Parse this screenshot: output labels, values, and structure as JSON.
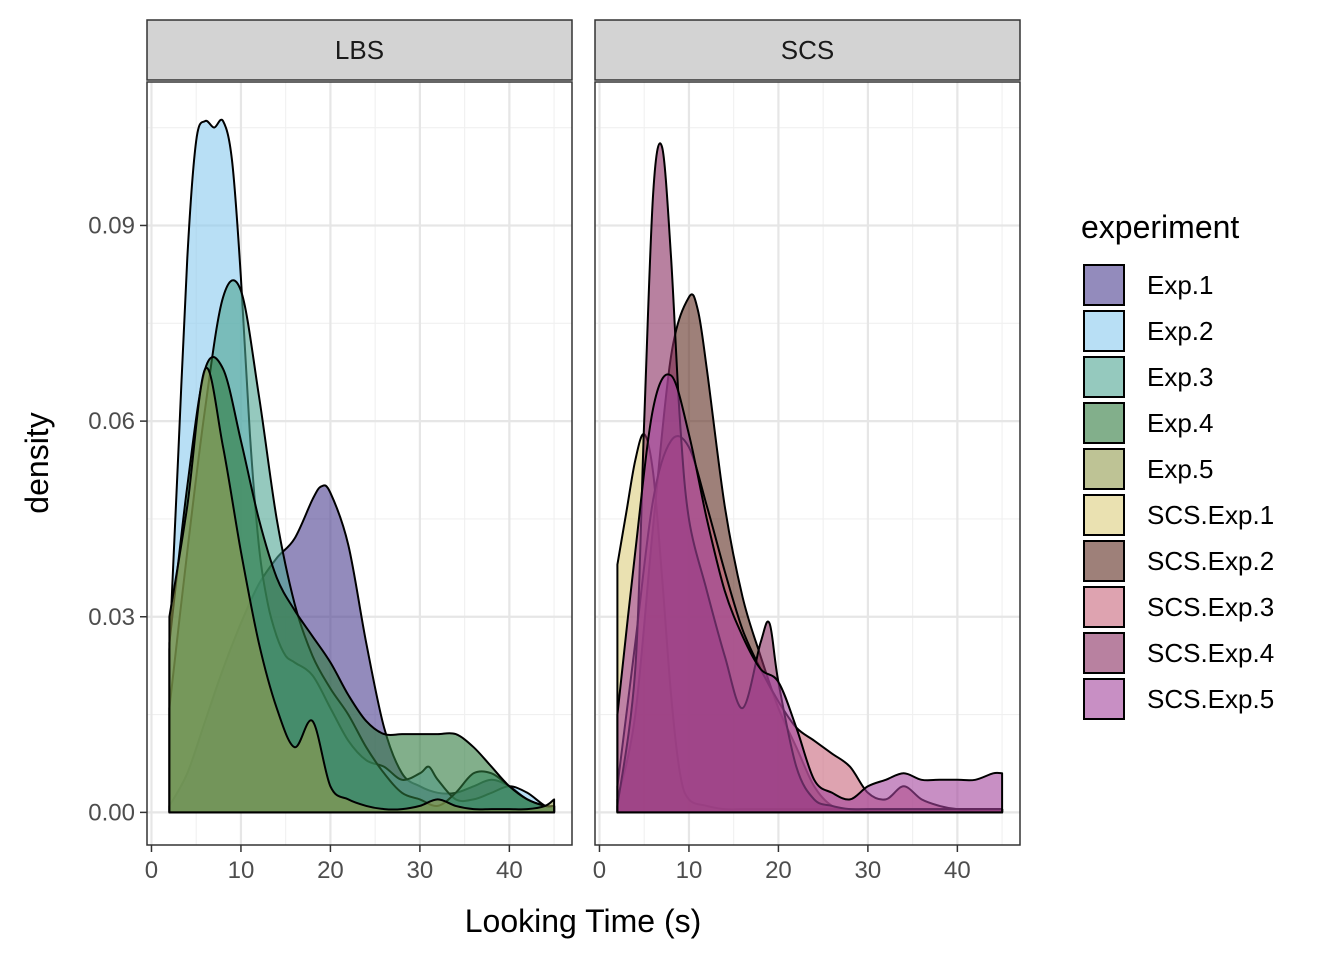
{
  "chart_data": {
    "type": "area",
    "xlabel": "Looking Time (s)",
    "ylabel": "density",
    "xlim": [
      -0.5,
      47
    ],
    "ylim": [
      -0.005,
      0.112
    ],
    "x_ticks": [
      0,
      10,
      20,
      30,
      40
    ],
    "y_ticks": [
      0.0,
      0.03,
      0.06,
      0.09
    ],
    "y_tick_labels": [
      "0.00",
      "0.03",
      "0.06",
      "0.09"
    ],
    "grid": true,
    "legend": {
      "title": "experiment",
      "position": "right",
      "entries": [
        {
          "name": "Exp.1",
          "color": "#4b3d8f"
        },
        {
          "name": "Exp.2",
          "color": "#88c9ee"
        },
        {
          "name": "Exp.3",
          "color": "#4fa592"
        },
        {
          "name": "Exp.4",
          "color": "#2f7a3e"
        },
        {
          "name": "Exp.5",
          "color": "#939b4f"
        },
        {
          "name": "SCS.Exp.1",
          "color": "#dccd7d"
        },
        {
          "name": "SCS.Exp.2",
          "color": "#5e2c1f"
        },
        {
          "name": "SCS.Exp.3",
          "color": "#c8667c"
        },
        {
          "name": "SCS.Exp.4",
          "color": "#892d60"
        },
        {
          "name": "SCS.Exp.5",
          "color": "#a4449c"
        }
      ]
    },
    "facets": [
      {
        "label": "LBS",
        "series": [
          {
            "name": "Exp.1",
            "x": [
              2,
              4,
              6,
              8,
              10,
              12,
              14,
              16,
              18,
              19,
              20,
              22,
              24,
              26,
              28,
              30,
              32,
              34,
              36,
              38,
              40,
              42,
              44,
              45
            ],
            "y": [
              0.001,
              0.006,
              0.014,
              0.022,
              0.029,
              0.035,
              0.039,
              0.042,
              0.048,
              0.05,
              0.049,
              0.041,
              0.026,
              0.013,
              0.006,
              0.004,
              0.003,
              0.003,
              0.004,
              0.005,
              0.004,
              0.002,
              0.001,
              0.001
            ]
          },
          {
            "name": "Exp.2",
            "x": [
              2,
              3,
              4,
              5,
              6,
              7,
              8,
              9,
              10,
              11,
              12,
              13,
              14,
              15,
              16,
              18,
              20,
              22,
              24,
              26,
              28,
              30,
              31,
              32,
              34,
              36,
              38,
              40,
              42,
              44,
              45
            ],
            "y": [
              0.025,
              0.055,
              0.085,
              0.103,
              0.106,
              0.105,
              0.106,
              0.1,
              0.082,
              0.058,
              0.041,
              0.032,
              0.027,
              0.024,
              0.023,
              0.021,
              0.016,
              0.011,
              0.008,
              0.007,
              0.005,
              0.006,
              0.007,
              0.005,
              0.002,
              0.002,
              0.003,
              0.004,
              0.003,
              0.001,
              0.001
            ]
          },
          {
            "name": "Exp.3",
            "x": [
              2,
              4,
              6,
              8,
              10,
              12,
              14,
              16,
              18,
              20,
              22,
              24,
              26,
              28,
              30,
              32,
              34,
              36,
              38,
              40,
              42,
              44,
              45
            ],
            "y": [
              0.016,
              0.04,
              0.062,
              0.079,
              0.08,
              0.064,
              0.045,
              0.032,
              0.024,
              0.019,
              0.015,
              0.01,
              0.006,
              0.003,
              0.002,
              0.001,
              0.003,
              0.006,
              0.006,
              0.004,
              0.002,
              0.001,
              0.001
            ]
          },
          {
            "name": "Exp.4",
            "x": [
              2,
              4,
              6,
              8,
              10,
              12,
              14,
              16,
              18,
              20,
              22,
              24,
              26,
              28,
              30,
              32,
              34,
              36,
              38,
              40,
              42,
              44,
              45
            ],
            "y": [
              0.026,
              0.05,
              0.068,
              0.068,
              0.057,
              0.045,
              0.036,
              0.031,
              0.027,
              0.023,
              0.018,
              0.014,
              0.012,
              0.012,
              0.012,
              0.012,
              0.012,
              0.01,
              0.007,
              0.004,
              0.002,
              0.001,
              0.001
            ]
          },
          {
            "name": "Exp.5",
            "x": [
              2,
              4,
              6,
              8,
              10,
              12,
              14,
              16,
              18,
              20,
              22,
              24,
              26,
              28,
              30,
              32,
              34,
              36,
              38,
              40,
              42,
              44,
              45
            ],
            "y": [
              0.03,
              0.047,
              0.068,
              0.056,
              0.04,
              0.026,
              0.016,
              0.01,
              0.014,
              0.004,
              0.002,
              0.001,
              0.0005,
              0.0005,
              0.001,
              0.002,
              0.001,
              0.0005,
              0.0005,
              0.0005,
              0.0005,
              0.001,
              0.002
            ]
          }
        ]
      },
      {
        "label": "SCS",
        "series": [
          {
            "name": "SCS.Exp.1",
            "x": [
              2,
              3,
              4,
              5,
              6,
              7,
              8,
              9,
              10,
              12,
              14,
              16,
              18,
              20,
              22,
              24,
              26,
              28,
              30,
              32,
              34,
              36,
              38,
              40,
              42,
              44,
              45
            ],
            "y": [
              0.038,
              0.046,
              0.054,
              0.058,
              0.052,
              0.036,
              0.018,
              0.006,
              0.002,
              0.001,
              0.0005,
              0.0005,
              0.0005,
              0.0005,
              0.0005,
              0.0005,
              0.0005,
              0.0005,
              0.0005,
              0.0005,
              0.0005,
              0.0005,
              0.0005,
              0.0005,
              0.0005,
              0.0005,
              0.0005
            ]
          },
          {
            "name": "SCS.Exp.2",
            "x": [
              2,
              4,
              6,
              8,
              10,
              11,
              12,
              14,
              16,
              18,
              20,
              22,
              24,
              26,
              28,
              30,
              32,
              34,
              36,
              38,
              40,
              42,
              44,
              45
            ],
            "y": [
              0.002,
              0.015,
              0.044,
              0.07,
              0.079,
              0.077,
              0.068,
              0.047,
              0.033,
              0.024,
              0.016,
              0.01,
              0.004,
              0.001,
              0.0005,
              0.0005,
              0.0005,
              0.0005,
              0.0005,
              0.0005,
              0.0005,
              0.0005,
              0.0005,
              0.0005
            ]
          },
          {
            "name": "SCS.Exp.3",
            "x": [
              2,
              4,
              6,
              8,
              10,
              12,
              14,
              16,
              18,
              20,
              22,
              24,
              26,
              28,
              30,
              32,
              34,
              36,
              38,
              40,
              42,
              44,
              45
            ],
            "y": [
              0.004,
              0.026,
              0.048,
              0.057,
              0.056,
              0.047,
              0.037,
              0.028,
              0.022,
              0.017,
              0.013,
              0.011,
              0.009,
              0.007,
              0.003,
              0.002,
              0.004,
              0.002,
              0.001,
              0.0005,
              0.0005,
              0.0005,
              0.0005
            ]
          },
          {
            "name": "SCS.Exp.4",
            "x": [
              2,
              4,
              5,
              6,
              7,
              8,
              9,
              10,
              12,
              14,
              16,
              18,
              19,
              20,
              22,
              24,
              26,
              28,
              30,
              32,
              34,
              36,
              38,
              40,
              42,
              44,
              45
            ],
            "y": [
              0.001,
              0.022,
              0.06,
              0.095,
              0.102,
              0.085,
              0.06,
              0.045,
              0.034,
              0.024,
              0.016,
              0.026,
              0.029,
              0.02,
              0.007,
              0.002,
              0.001,
              0.0005,
              0.0005,
              0.0005,
              0.0005,
              0.0005,
              0.0005,
              0.0005,
              0.0005,
              0.0005,
              0.0005
            ]
          },
          {
            "name": "SCS.Exp.5",
            "x": [
              2,
              4,
              6,
              8,
              10,
              12,
              14,
              16,
              18,
              20,
              22,
              24,
              26,
              28,
              30,
              32,
              34,
              36,
              38,
              40,
              42,
              44,
              45
            ],
            "y": [
              0.015,
              0.04,
              0.062,
              0.067,
              0.058,
              0.045,
              0.034,
              0.027,
              0.022,
              0.02,
              0.013,
              0.005,
              0.003,
              0.002,
              0.004,
              0.005,
              0.006,
              0.005,
              0.005,
              0.005,
              0.005,
              0.006,
              0.006
            ]
          }
        ]
      }
    ]
  }
}
